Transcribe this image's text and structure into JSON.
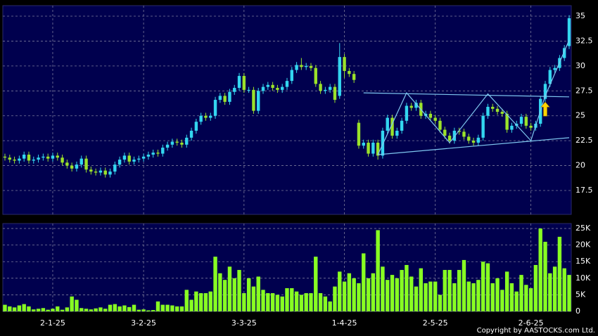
{
  "chart_data": {
    "type": "candlestick",
    "copyright": "Copyright by AASTOCKS.com Ltd.",
    "categories": [
      null,
      null,
      null,
      null,
      null,
      null,
      null,
      null,
      null,
      null,
      "2-1-25",
      null,
      null,
      null,
      null,
      null,
      null,
      null,
      null,
      null,
      null,
      null,
      null,
      null,
      null,
      null,
      null,
      null,
      null,
      "3-2-25",
      null,
      null,
      null,
      null,
      null,
      null,
      null,
      null,
      null,
      null,
      null,
      null,
      null,
      null,
      null,
      null,
      null,
      null,
      null,
      null,
      "3-3-25",
      null,
      null,
      null,
      null,
      null,
      null,
      null,
      null,
      null,
      null,
      null,
      null,
      null,
      null,
      null,
      null,
      null,
      null,
      null,
      null,
      "1-4-25",
      null,
      null,
      null,
      null,
      null,
      null,
      null,
      null,
      null,
      null,
      null,
      null,
      null,
      null,
      null,
      null,
      null,
      null,
      "2-5-25",
      null,
      null,
      null,
      null,
      null,
      null,
      null,
      null,
      null,
      null,
      null,
      null,
      null,
      null,
      null,
      null,
      null,
      null,
      null,
      "2-6-25",
      null,
      null,
      null,
      null,
      null,
      null,
      null,
      null
    ],
    "open": [
      20.9,
      20.8,
      20.6,
      20.5,
      20.7,
      21.1,
      20.5,
      20.6,
      20.8,
      20.9,
      20.7,
      21.0,
      20.8,
      20.3,
      20.0,
      19.7,
      20.1,
      20.7,
      19.6,
      19.4,
      19.3,
      19.5,
      19.1,
      19.4,
      20.1,
      20.6,
      21.0,
      20.4,
      20.6,
      20.7,
      20.9,
      21.1,
      21.3,
      21.2,
      21.8,
      22.1,
      22.4,
      22.3,
      22.1,
      22.8,
      23.5,
      24.4,
      25.0,
      24.8,
      25.0,
      26.6,
      27.0,
      26.4,
      27.4,
      27.8,
      29.0,
      27.6,
      27.6,
      25.5,
      27.5,
      27.9,
      28.1,
      27.8,
      27.6,
      27.9,
      28.5,
      29.6,
      30.1,
      29.9,
      30.0,
      29.8,
      28.2,
      27.5,
      27.6,
      27.9,
      27.0,
      30.9,
      29.5,
      29.2,
      24.3,
      22.0,
      22.3,
      21.2,
      22.3,
      21.0,
      23.5,
      24.8,
      23.0,
      23.5,
      24.5,
      26.0,
      25.8,
      26.3,
      25.0,
      25.2,
      24.8,
      24.5,
      23.6,
      23.0,
      22.5,
      23.5,
      23.4,
      22.9,
      22.5,
      22.3,
      22.8,
      25.0,
      25.9,
      25.7,
      25.4,
      25.2,
      23.6,
      24.0,
      24.2,
      24.9,
      24.0,
      23.8,
      24.2,
      26.7,
      28.2,
      29.6,
      29.8,
      30.8,
      32.0
    ],
    "high": [
      21.2,
      21.1,
      20.9,
      21.0,
      21.4,
      21.4,
      20.9,
      21.1,
      21.2,
      21.2,
      21.3,
      21.3,
      21.1,
      20.6,
      20.3,
      20.4,
      21.0,
      21.0,
      19.9,
      19.7,
      19.8,
      19.8,
      19.7,
      20.4,
      20.9,
      21.3,
      21.3,
      20.9,
      21.0,
      21.2,
      21.4,
      21.6,
      21.6,
      22.1,
      22.4,
      22.7,
      22.7,
      22.6,
      23.1,
      23.8,
      24.7,
      25.3,
      25.3,
      25.3,
      26.9,
      27.3,
      27.3,
      27.7,
      28.1,
      29.3,
      29.3,
      27.9,
      27.9,
      27.8,
      28.2,
      28.4,
      28.4,
      28.1,
      28.2,
      28.8,
      29.9,
      30.4,
      30.8,
      30.3,
      30.3,
      30.1,
      28.5,
      27.9,
      28.2,
      28.2,
      32.3,
      31.2,
      29.8,
      29.5,
      24.6,
      22.6,
      22.6,
      22.6,
      22.6,
      23.8,
      25.1,
      25.1,
      23.8,
      24.8,
      26.3,
      26.3,
      26.6,
      26.6,
      25.5,
      25.5,
      25.1,
      24.8,
      23.9,
      23.3,
      23.8,
      23.8,
      23.7,
      23.2,
      22.8,
      23.1,
      25.3,
      26.2,
      26.2,
      26.0,
      25.7,
      25.5,
      24.3,
      24.5,
      25.2,
      25.2,
      24.3,
      24.5,
      27.0,
      28.5,
      29.9,
      30.1,
      31.1,
      32.1,
      35.1
    ],
    "low": [
      20.5,
      20.3,
      20.2,
      20.2,
      20.4,
      20.2,
      20.2,
      20.3,
      20.5,
      20.4,
      20.4,
      20.5,
      20.0,
      19.7,
      19.4,
      19.4,
      19.8,
      19.3,
      19.1,
      19.0,
      19.0,
      18.8,
      18.8,
      19.1,
      19.8,
      20.3,
      20.1,
      20.1,
      20.3,
      20.4,
      20.6,
      20.8,
      20.9,
      20.9,
      21.5,
      21.8,
      22.0,
      21.8,
      21.8,
      22.5,
      23.2,
      24.1,
      24.5,
      24.5,
      24.7,
      26.3,
      26.1,
      26.1,
      27.1,
      27.5,
      27.3,
      27.3,
      25.2,
      25.2,
      27.2,
      27.6,
      27.5,
      27.3,
      27.3,
      27.6,
      28.2,
      29.3,
      29.6,
      29.6,
      29.5,
      27.9,
      27.2,
      27.2,
      27.3,
      26.3,
      26.7,
      28.8,
      28.9,
      28.3,
      21.7,
      21.7,
      20.9,
      20.9,
      20.6,
      20.7,
      23.2,
      22.7,
      22.7,
      23.2,
      24.2,
      25.5,
      25.5,
      24.7,
      24.7,
      24.5,
      24.2,
      23.3,
      22.7,
      22.2,
      22.2,
      23.1,
      22.6,
      22.2,
      22.0,
      22.0,
      22.5,
      24.7,
      25.4,
      25.1,
      24.9,
      23.3,
      23.3,
      23.7,
      23.9,
      23.7,
      23.5,
      23.5,
      23.9,
      26.4,
      27.9,
      29.3,
      29.5,
      30.5,
      31.7
    ],
    "close": [
      20.8,
      20.6,
      20.5,
      20.7,
      21.1,
      20.5,
      20.6,
      20.8,
      20.9,
      20.7,
      21.0,
      20.8,
      20.3,
      20.0,
      19.7,
      20.1,
      20.7,
      19.6,
      19.4,
      19.3,
      19.5,
      19.1,
      19.4,
      20.1,
      20.6,
      21.0,
      20.4,
      20.6,
      20.7,
      20.9,
      21.1,
      21.3,
      21.2,
      21.8,
      22.1,
      22.4,
      22.3,
      22.1,
      22.8,
      23.5,
      24.4,
      25.0,
      24.8,
      25.0,
      26.6,
      27.0,
      26.4,
      27.4,
      27.8,
      29.0,
      27.6,
      27.6,
      25.5,
      27.5,
      27.9,
      28.1,
      27.8,
      27.6,
      27.9,
      28.5,
      29.6,
      30.1,
      29.9,
      30.0,
      29.8,
      28.2,
      27.5,
      27.6,
      27.9,
      26.6,
      30.9,
      29.5,
      29.2,
      28.6,
      22.0,
      22.3,
      21.2,
      22.3,
      21.0,
      23.5,
      24.8,
      23.0,
      23.5,
      24.5,
      26.0,
      25.8,
      26.3,
      25.0,
      25.2,
      24.8,
      24.5,
      23.6,
      23.0,
      22.5,
      23.5,
      23.4,
      22.9,
      22.5,
      22.3,
      22.8,
      25.0,
      25.9,
      25.7,
      25.4,
      25.2,
      23.6,
      24.0,
      24.2,
      24.9,
      24.0,
      23.8,
      24.2,
      26.7,
      28.2,
      29.6,
      29.8,
      30.8,
      31.8,
      34.8
    ],
    "volume": [
      2000,
      1500,
      1200,
      1800,
      2200,
      1500,
      600,
      800,
      1000,
      500,
      800,
      1500,
      500,
      1200,
      4500,
      3500,
      1000,
      800,
      600,
      900,
      1200,
      800,
      2000,
      2200,
      1500,
      1800,
      1300,
      2000,
      500,
      600,
      300,
      400,
      3000,
      2000,
      2000,
      1800,
      1500,
      1500,
      6500,
      3500,
      6000,
      5500,
      5500,
      6000,
      16500,
      11500,
      9500,
      13500,
      10000,
      12500,
      5500,
      10000,
      7500,
      10500,
      6500,
      5500,
      5500,
      5000,
      4500,
      7000,
      7000,
      6000,
      5000,
      5500,
      5500,
      16500,
      5500,
      4500,
      3000,
      7500,
      12000,
      9000,
      11500,
      10000,
      8500,
      17500,
      10000,
      11500,
      24500,
      13500,
      9500,
      11000,
      10000,
      12500,
      14000,
      10500,
      7500,
      13000,
      8500,
      9000,
      9000,
      5000,
      12500,
      12500,
      8500,
      12500,
      15500,
      9000,
      8500,
      9500,
      15000,
      14500,
      8500,
      10000,
      6500,
      12000,
      8500,
      6000,
      11000,
      8000,
      7000,
      14000,
      25000,
      21000,
      11500,
      13500,
      22500,
      13000,
      11000
    ],
    "up_color": "#33d6f0",
    "down_color": "#9be22a",
    "volume_color": "#88ff22",
    "overlay_color": "#7fc8f0",
    "arrow_color": "#ffd400",
    "overlay_lines": [
      [
        [
          75,
          27.3
        ],
        [
          118,
          26.9
        ]
      ],
      [
        [
          78,
          21.1
        ],
        [
          118,
          22.8
        ]
      ],
      [
        [
          78,
          21.1
        ],
        [
          84,
          27.3
        ],
        [
          93,
          22.3
        ],
        [
          101,
          27.2
        ],
        [
          110,
          22.5
        ],
        [
          113,
          27.0
        ],
        [
          118,
          32.6
        ]
      ]
    ],
    "arrow": [
      113,
      25.6
    ],
    "ylim": [
      15.1,
      36.06
    ],
    "yticks": [
      17.5,
      20,
      22.5,
      25,
      27.5,
      30,
      32.5,
      35
    ],
    "y2lim": [
      0,
      26500
    ],
    "y2ticks": [
      {
        "value": 5000,
        "label": "5K"
      },
      {
        "value": 10000,
        "label": "10K"
      },
      {
        "value": 15000,
        "label": "15K"
      },
      {
        "value": 20000,
        "label": "20K"
      },
      {
        "value": 25000,
        "label": "25K"
      },
      0
    ],
    "grid": true
  }
}
